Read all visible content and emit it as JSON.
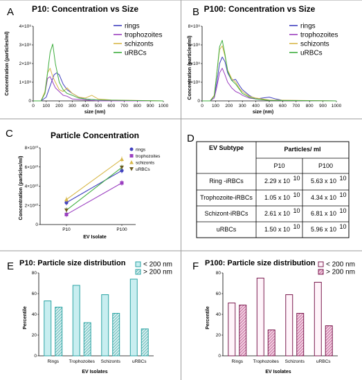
{
  "panels": {
    "A": "A",
    "B": "B",
    "C": "C",
    "D": "D",
    "E": "E",
    "F": "F"
  },
  "colors": {
    "rings": "#4040c0",
    "trophozoites": "#9b3fc0",
    "schizonts": "#d8b84a",
    "uRBCs": "#3fae3f",
    "tealFill": "#c8eef0",
    "tealEdge": "#2aa3a3",
    "magentaFill": "#fff4fa",
    "magentaEdge": "#7a1a4e",
    "hatchTeal": "#3a9f9f",
    "hatchMagenta": "#b04080"
  },
  "chart_data": [
    {
      "id": "A",
      "type": "line",
      "title": "P10: Concentration vs Size",
      "xlabel": "size (nm)",
      "ylabel": "Concentration (particles/ml)",
      "xlim": [
        0,
        1000
      ],
      "ylim": [
        0,
        400000000
      ],
      "xticks": [
        "0",
        "100",
        "200",
        "300",
        "400",
        "500",
        "600",
        "700",
        "800",
        "900",
        "1000"
      ],
      "yticks": [
        "0",
        "1×10⁸",
        "2×10⁸",
        "3×10⁸",
        "4×10⁸"
      ],
      "series": [
        {
          "name": "rings",
          "x": [
            0,
            60,
            100,
            130,
            160,
            180,
            200,
            230,
            260,
            300,
            350,
            400,
            500,
            600,
            700,
            1000
          ],
          "y": [
            0,
            0,
            20000000,
            80000000,
            140000000,
            150000000,
            140000000,
            90000000,
            60000000,
            40000000,
            20000000,
            10000000,
            5000000,
            3000000,
            1000000,
            0
          ]
        },
        {
          "name": "trophozoites",
          "x": [
            0,
            60,
            90,
            110,
            130,
            150,
            170,
            200,
            230,
            260,
            300,
            400,
            500,
            1000
          ],
          "y": [
            0,
            0,
            40000000,
            120000000,
            130000000,
            100000000,
            70000000,
            50000000,
            30000000,
            25000000,
            10000000,
            5000000,
            0,
            0
          ]
        },
        {
          "name": "schizonts",
          "x": [
            0,
            60,
            90,
            110,
            130,
            150,
            170,
            200,
            230,
            260,
            300,
            350,
            400,
            450,
            500,
            600,
            1000
          ],
          "y": [
            0,
            0,
            50000000,
            150000000,
            175000000,
            130000000,
            100000000,
            60000000,
            50000000,
            70000000,
            40000000,
            20000000,
            15000000,
            30000000,
            10000000,
            5000000,
            0
          ]
        },
        {
          "name": "uRBCs",
          "x": [
            0,
            60,
            90,
            110,
            130,
            150,
            170,
            200,
            230,
            260,
            300,
            350,
            400,
            500,
            1000
          ],
          "y": [
            0,
            0,
            40000000,
            150000000,
            260000000,
            305000000,
            200000000,
            100000000,
            60000000,
            40000000,
            30000000,
            15000000,
            10000000,
            5000000,
            0
          ]
        }
      ]
    },
    {
      "id": "B",
      "type": "line",
      "title": "P100: Concentration vs Size",
      "xlabel": "size (nm)",
      "ylabel": "Concentration (particles/ml)",
      "xlim": [
        0,
        1000
      ],
      "ylim": [
        0,
        800000000
      ],
      "xticks": [
        "0",
        "100",
        "200",
        "300",
        "400",
        "500",
        "600",
        "700",
        "800",
        "900",
        "1000"
      ],
      "yticks": [
        "0",
        "2×10⁸",
        "4×10⁸",
        "6×10⁸",
        "8×10⁸"
      ],
      "series": [
        {
          "name": "rings",
          "x": [
            0,
            60,
            90,
            110,
            130,
            150,
            170,
            190,
            220,
            250,
            280,
            300,
            350,
            400,
            450,
            500,
            550,
            600,
            1000
          ],
          "y": [
            0,
            0,
            50000000,
            200000000,
            400000000,
            470000000,
            420000000,
            300000000,
            220000000,
            230000000,
            160000000,
            120000000,
            60000000,
            20000000,
            30000000,
            40000000,
            20000000,
            5000000,
            0
          ]
        },
        {
          "name": "trophozoites",
          "x": [
            0,
            60,
            90,
            110,
            130,
            150,
            170,
            190,
            220,
            250,
            280,
            300,
            350,
            400,
            500,
            1000
          ],
          "y": [
            0,
            0,
            30000000,
            150000000,
            300000000,
            350000000,
            280000000,
            200000000,
            140000000,
            100000000,
            80000000,
            60000000,
            30000000,
            20000000,
            5000000,
            0
          ]
        },
        {
          "name": "schizonts",
          "x": [
            0,
            60,
            90,
            110,
            130,
            150,
            170,
            190,
            220,
            250,
            280,
            300,
            350,
            400,
            500,
            1000
          ],
          "y": [
            0,
            0,
            60000000,
            300000000,
            550000000,
            590000000,
            480000000,
            330000000,
            240000000,
            200000000,
            130000000,
            100000000,
            50000000,
            30000000,
            10000000,
            0
          ]
        },
        {
          "name": "uRBCs",
          "x": [
            0,
            60,
            90,
            110,
            130,
            150,
            170,
            190,
            220,
            250,
            280,
            300,
            350,
            400,
            500,
            1000
          ],
          "y": [
            0,
            0,
            50000000,
            300000000,
            580000000,
            650000000,
            500000000,
            320000000,
            220000000,
            180000000,
            120000000,
            80000000,
            40000000,
            20000000,
            5000000,
            0
          ]
        }
      ]
    },
    {
      "id": "C",
      "type": "line",
      "title": "Particle Concentration",
      "xlabel": "EV Isolate",
      "ylabel": "Concentration (particles/ml)",
      "categories": [
        "P10",
        "P100"
      ],
      "ylim": [
        0,
        80000000000
      ],
      "yticks": [
        "0",
        "2×10¹⁰",
        "4×10¹⁰",
        "6×10¹⁰",
        "8×10¹⁰"
      ],
      "series": [
        {
          "name": "rings",
          "values": [
            22900000000,
            56300000000
          ]
        },
        {
          "name": "trophozoites",
          "values": [
            10500000000,
            43400000000
          ]
        },
        {
          "name": "schizonts",
          "values": [
            26100000000,
            68100000000
          ]
        },
        {
          "name": "uRBCs",
          "values": [
            15000000000,
            59600000000
          ]
        }
      ]
    },
    {
      "id": "D",
      "type": "table",
      "header": {
        "subtype": "EV Subtype",
        "particles": "Particles/ ml",
        "p10": "P10",
        "p100": "P100"
      },
      "rows": [
        {
          "name": "Ring -iRBCs",
          "p10": "2.29 x 10",
          "p10exp": "10",
          "p100": "5.63 x 10",
          "p100exp": "10"
        },
        {
          "name": "Trophozoite-iRBCs",
          "p10": "1.05 x 10",
          "p10exp": "10",
          "p100": "4.34 x 10",
          "p100exp": "10"
        },
        {
          "name": "Schizont-iRBCs",
          "p10": "2.61 x 10",
          "p10exp": "10",
          "p100": "6.81 x 10",
          "p100exp": "10"
        },
        {
          "name": "uRBCs",
          "p10": "1.50 x 10",
          "p10exp": "10",
          "p100": "5.96 x 10",
          "p100exp": "10"
        }
      ]
    },
    {
      "id": "E",
      "type": "bar",
      "title": "P10: Particle size distribution",
      "xlabel": "EV Isolates",
      "ylabel": "Percentile",
      "categories": [
        "Rings",
        "Trophozoites",
        "Schizonts",
        "uRBCs"
      ],
      "ylim": [
        0,
        80
      ],
      "yticks": [
        "0",
        "20",
        "40",
        "60",
        "80"
      ],
      "series": [
        {
          "name": "< 200 nm",
          "values": [
            53,
            68,
            59,
            74
          ]
        },
        {
          "name": "> 200 nm",
          "values": [
            47,
            32,
            41,
            26
          ]
        }
      ]
    },
    {
      "id": "F",
      "type": "bar",
      "title": "P100: Particle size distribution",
      "xlabel": "EV Isolates",
      "ylabel": "Percentile",
      "categories": [
        "Rings",
        "Trophozoites",
        "Schizonts",
        "uRBCs"
      ],
      "ylim": [
        0,
        80
      ],
      "yticks": [
        "0",
        "20",
        "40",
        "60",
        "80"
      ],
      "series": [
        {
          "name": "< 200 nm",
          "values": [
            51,
            75,
            59,
            71
          ]
        },
        {
          "name": "> 200 nm",
          "values": [
            49,
            25,
            41,
            29
          ]
        }
      ]
    }
  ]
}
